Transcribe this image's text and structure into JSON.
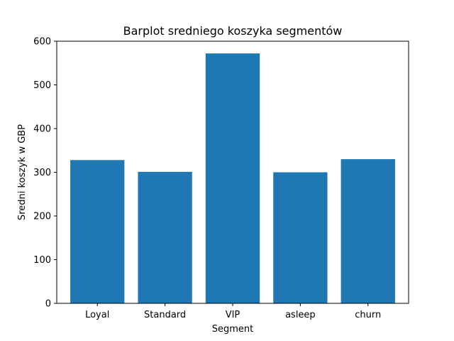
{
  "chart_data": {
    "type": "bar",
    "title": "Barplot sredniego koszyka segmentów",
    "xlabel": "Segment",
    "ylabel": "Sredni koszyk w GBP",
    "categories": [
      "Loyal",
      "Standard",
      "VIP",
      "asleep",
      "churn"
    ],
    "values": [
      328,
      301,
      572,
      300,
      330
    ],
    "ylim": [
      0,
      600
    ],
    "yticks": [
      0,
      100,
      200,
      300,
      400,
      500,
      600
    ],
    "bar_color": "#1f77b4",
    "grid": false,
    "legend": "none"
  }
}
